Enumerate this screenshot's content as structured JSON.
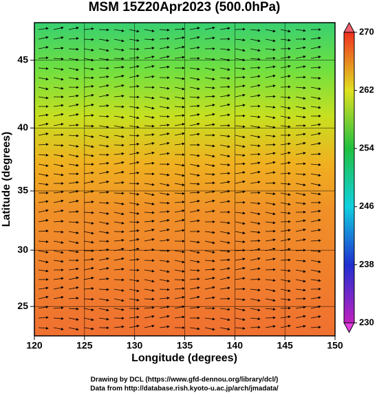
{
  "chart_data": {
    "type": "map",
    "title": "MSM 15Z20Apr2023 (500.0hPa)",
    "x_label": "Longitude (degrees)",
    "y_label": "Latitude  (degrees)",
    "xlim": [
      120,
      150
    ],
    "xticks": [
      120,
      125,
      130,
      135,
      140,
      145,
      150
    ],
    "ylim": [
      22.3,
      47.6
    ],
    "yticks": [
      25,
      30,
      35,
      40,
      45
    ],
    "projection": "mercator",
    "colorbar": {
      "lim": [
        230,
        270
      ],
      "ticks": [
        230,
        238,
        246,
        254,
        262,
        270
      ]
    },
    "credits": [
      "Drawing by DCL (https://www.gfd-dennou.org/library/dcl/)",
      "Data from http://database.rish.kyoto-u.ac.jp/arch/jmadata/"
    ]
  }
}
